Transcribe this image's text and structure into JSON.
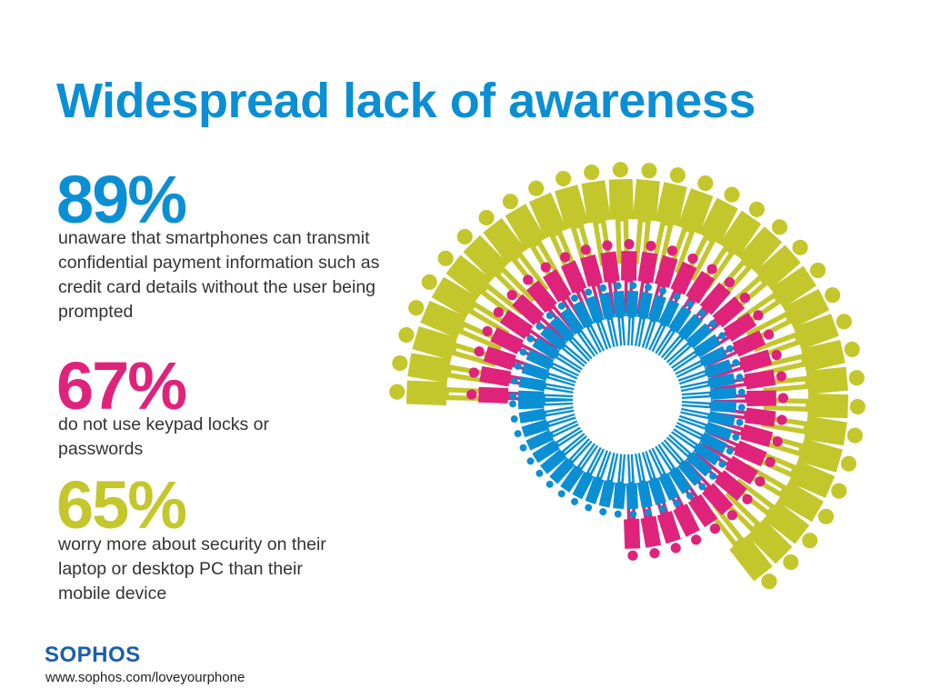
{
  "title": "Widespread lack of awareness",
  "stats": [
    {
      "value": "89%",
      "color": "#0a8fd4",
      "text": "unaware that smartphones can transmit confidential payment information such as credit card details without the user being prompted"
    },
    {
      "value": "67%",
      "color": "#e0237a",
      "text": "do not use keypad locks or passwords"
    },
    {
      "value": "65%",
      "color": "#c3c72c",
      "text": "worry more about security on their laptop or desktop PC than their mobile device"
    }
  ],
  "footer": {
    "logo": "SOPHOS",
    "url": "www.sophos.com/loveyourphone"
  },
  "graphic": {
    "icon": "person-icon",
    "rings": [
      {
        "name": "outer",
        "color": "#c3c72c",
        "percent": 65
      },
      {
        "name": "middle",
        "color": "#e0237a",
        "percent": 67
      },
      {
        "name": "inner",
        "color": "#0a8fd4",
        "percent": 89
      }
    ]
  }
}
